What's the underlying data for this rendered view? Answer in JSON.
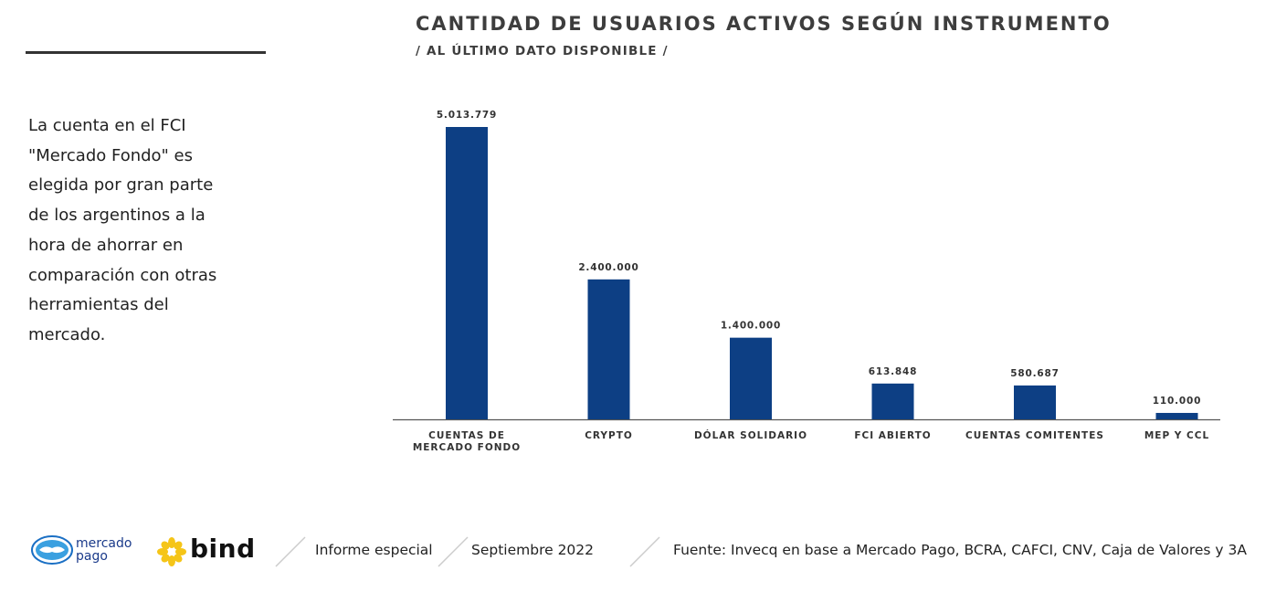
{
  "header": {
    "title": "CANTIDAD DE USUARIOS ACTIVOS SEGÚN INSTRUMENTO",
    "subtitle": "/ AL ÚLTIMO DATO DISPONIBLE /"
  },
  "sidebar": {
    "text_lines": [
      "La cuenta en el FCI",
      "\"Mercado Fondo\" es",
      "elegida por gran parte",
      "de los argentinos a la",
      "hora de ahorrar en",
      "comparación con otras",
      "herramientas del",
      "mercado."
    ]
  },
  "chart_data": {
    "type": "bar",
    "categories": [
      [
        "CUENTAS DE",
        "MERCADO FONDO"
      ],
      [
        "CRYPTO"
      ],
      [
        "DÓLAR SOLIDARIO"
      ],
      [
        "FCI ABIERTO"
      ],
      [
        "CUENTAS COMITENTES"
      ],
      [
        "MEP Y CCL"
      ]
    ],
    "values": [
      5013779,
      2400000,
      1400000,
      613848,
      580687,
      110000
    ],
    "value_labels": [
      "5.013.779",
      "2.400.000",
      "1.400.000",
      "613.848",
      "580.687",
      "110.000"
    ],
    "title": "CANTIDAD DE USUARIOS ACTIVOS SEGÚN INSTRUMENTO",
    "subtitle": "/ AL ÚLTIMO DATO DISPONIBLE /",
    "bar_color": "#0d3f84",
    "ylim": [
      0,
      5013779
    ],
    "grid": false,
    "legend": "none"
  },
  "footer": {
    "logo_mp_line1": "mercado",
    "logo_mp_line2": "pago",
    "logo_bind": "bind",
    "report": "Informe especial",
    "date": "Septiembre 2022",
    "source": "Fuente: Invecq en base a Mercado Pago, BCRA, CAFCI, CNV, Caja de Valores y 3A"
  },
  "colors": {
    "bar": "#0d3f84",
    "mp_blue": "#1a3a8a",
    "bind_yellow": "#f5c518",
    "text": "#222222"
  }
}
